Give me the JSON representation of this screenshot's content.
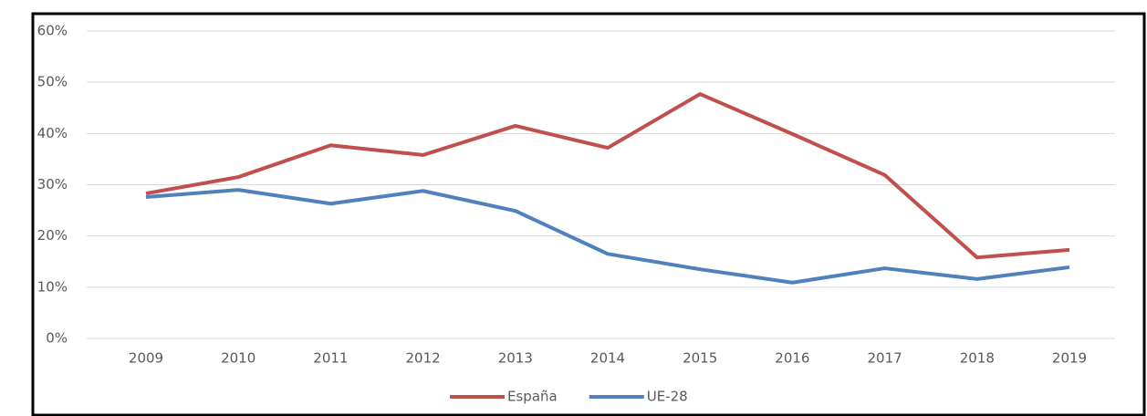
{
  "chart_data": {
    "type": "line",
    "categories": [
      "2009",
      "2010",
      "2011",
      "2012",
      "2013",
      "2014",
      "2015",
      "2016",
      "2017",
      "2018",
      "2019"
    ],
    "series": [
      {
        "name": "España",
        "color": "#c0504d",
        "values": [
          28.3,
          31.5,
          37.7,
          35.8,
          41.5,
          37.2,
          47.7,
          39.9,
          31.9,
          15.8,
          17.3
        ]
      },
      {
        "name": "UE-28",
        "color": "#4f81bd",
        "values": [
          27.6,
          29.0,
          26.3,
          28.8,
          24.9,
          16.5,
          13.5,
          10.9,
          13.7,
          11.6,
          13.9
        ]
      }
    ],
    "ylim": [
      0,
      60
    ],
    "yticks": [
      {
        "value": 0,
        "label": "0%"
      },
      {
        "value": 10,
        "label": "10%"
      },
      {
        "value": 20,
        "label": "20%"
      },
      {
        "value": 30,
        "label": "30%"
      },
      {
        "value": 40,
        "label": "40%"
      },
      {
        "value": 50,
        "label": "50%"
      },
      {
        "value": 60,
        "label": "60%"
      }
    ],
    "grid": true,
    "legend": "bottom"
  }
}
